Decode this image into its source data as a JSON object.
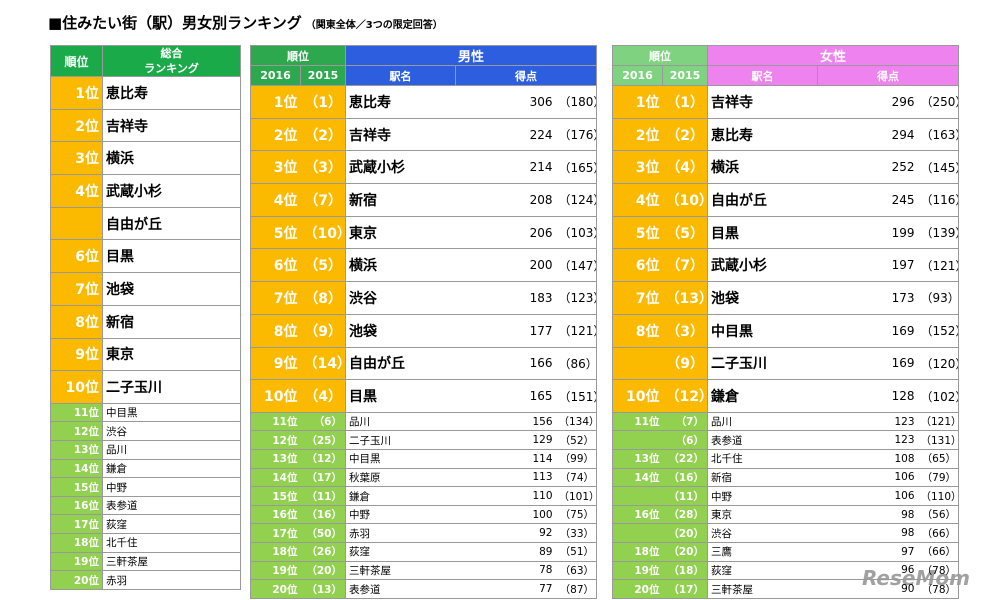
{
  "title": "■住みたい街（駅）男女別ランキング",
  "subtitle": "（関東全体／3つの限定回答）",
  "overall": {
    "header": {
      "rank": "順位",
      "title": [
        "総合",
        "ランキング"
      ]
    },
    "rows": [
      [
        "1位",
        "恵比寿"
      ],
      [
        "2位",
        "吉祥寺"
      ],
      [
        "3位",
        "横浜"
      ],
      [
        "4位",
        "武蔵小杉"
      ],
      [
        null,
        "自由が丘"
      ],
      [
        "6位",
        "目黒"
      ],
      [
        "7位",
        "池袋"
      ],
      [
        "8位",
        "新宿"
      ],
      [
        "9位",
        "東京"
      ],
      [
        "10位",
        "二子玉川"
      ],
      [
        "11位",
        "中目黒"
      ],
      [
        "12位",
        "渋谷"
      ],
      [
        "13位",
        "品川"
      ],
      [
        "14位",
        "鎌倉"
      ],
      [
        "15位",
        "中野"
      ],
      [
        "16位",
        "表参道"
      ],
      [
        "17位",
        "荻窪"
      ],
      [
        "18位",
        "北千住"
      ],
      [
        "19位",
        "三軒茶屋"
      ],
      [
        "20位",
        "赤羽"
      ]
    ]
  },
  "male": {
    "header": {
      "rank": "順位",
      "year_new": "2016",
      "year_old": "2015",
      "group": "男性",
      "station": "駅名",
      "score": "得点"
    },
    "rows": [
      [
        "1位",
        "（1）",
        "恵比寿",
        306,
        "（180）"
      ],
      [
        "2位",
        "（2）",
        "吉祥寺",
        224,
        "（176）"
      ],
      [
        "3位",
        "（3）",
        "武蔵小杉",
        214,
        "（165）"
      ],
      [
        "4位",
        "（7）",
        "新宿",
        208,
        "（124）"
      ],
      [
        "5位",
        "（10）",
        "東京",
        206,
        "（103）"
      ],
      [
        "6位",
        "（5）",
        "横浜",
        200,
        "（147）"
      ],
      [
        "7位",
        "（8）",
        "渋谷",
        183,
        "（123）"
      ],
      [
        "8位",
        "（9）",
        "池袋",
        177,
        "（121）"
      ],
      [
        "9位",
        "（14）",
        "自由が丘",
        166,
        "（86）"
      ],
      [
        "10位",
        "（4）",
        "目黒",
        165,
        "（151）"
      ],
      [
        "11位",
        "（6）",
        "品川",
        156,
        "（134）"
      ],
      [
        "12位",
        "（25）",
        "二子玉川",
        129,
        "（52）"
      ],
      [
        "13位",
        "（12）",
        "中目黒",
        114,
        "（99）"
      ],
      [
        "14位",
        "（17）",
        "秋葉原",
        113,
        "（74）"
      ],
      [
        "15位",
        "（11）",
        "鎌倉",
        110,
        "（101）"
      ],
      [
        "16位",
        "（16）",
        "中野",
        100,
        "（75）"
      ],
      [
        "17位",
        "（50）",
        "赤羽",
        92,
        "（33）"
      ],
      [
        "18位",
        "（26）",
        "荻窪",
        89,
        "（51）"
      ],
      [
        "19位",
        "（20）",
        "三軒茶屋",
        78,
        "（63）"
      ],
      [
        "20位",
        "（13）",
        "表参道",
        77,
        "（87）"
      ]
    ]
  },
  "female": {
    "header": {
      "rank": "順位",
      "year_new": "2016",
      "year_old": "2015",
      "group": "女性",
      "station": "駅名",
      "score": "得点"
    },
    "rows": [
      [
        "1位",
        "（1）",
        "吉祥寺",
        296,
        "（250）"
      ],
      [
        "2位",
        "（2）",
        "恵比寿",
        294,
        "（163）"
      ],
      [
        "3位",
        "（4）",
        "横浜",
        252,
        "（145）"
      ],
      [
        "4位",
        "（10）",
        "自由が丘",
        245,
        "（116）"
      ],
      [
        "5位",
        "（5）",
        "目黒",
        199,
        "（139）"
      ],
      [
        "6位",
        "（7）",
        "武蔵小杉",
        197,
        "（121）"
      ],
      [
        "7位",
        "（13）",
        "池袋",
        173,
        "（93）"
      ],
      [
        "8位",
        "（3）",
        "中目黒",
        169,
        "（152）"
      ],
      [
        null,
        "（9）",
        "二子玉川",
        169,
        "（120）"
      ],
      [
        "10位",
        "（12）",
        "鎌倉",
        128,
        "（102）"
      ],
      [
        "11位",
        "（7）",
        "品川",
        123,
        "（121）"
      ],
      [
        null,
        "（6）",
        "表参道",
        123,
        "（131）"
      ],
      [
        "13位",
        "（22）",
        "北千住",
        108,
        "（65）"
      ],
      [
        "14位",
        "（16）",
        "新宿",
        106,
        "（79）"
      ],
      [
        null,
        "（11）",
        "中野",
        106,
        "（110）"
      ],
      [
        "16位",
        "（28）",
        "東京",
        98,
        "（56）"
      ],
      [
        null,
        "（20）",
        "渋谷",
        98,
        "（66）"
      ],
      [
        "18位",
        "（20）",
        "三鷹",
        97,
        "（66）"
      ],
      [
        "19位",
        "（18）",
        "荻窪",
        96,
        "（78）"
      ],
      [
        "20位",
        "（17）",
        "三軒茶屋",
        90,
        "（78）"
      ]
    ]
  },
  "watermark": "ReseMom"
}
